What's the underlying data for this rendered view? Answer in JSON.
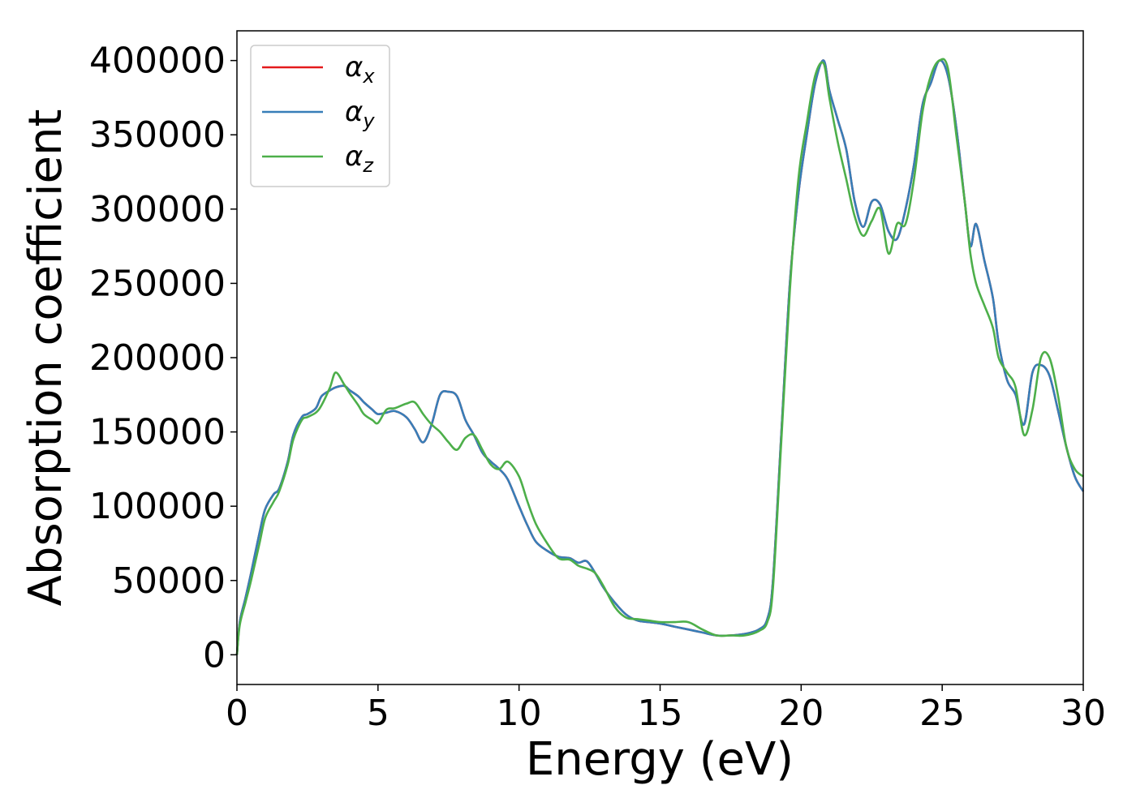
{
  "chart_data": {
    "type": "line",
    "xlabel": "Energy (eV)",
    "ylabel": "Absorption coefficient",
    "xlim": [
      0,
      30
    ],
    "ylim": [
      -20000,
      420000
    ],
    "xticks": [
      0,
      5,
      10,
      15,
      20,
      25,
      30
    ],
    "xtick_labels": [
      "0",
      "5",
      "10",
      "15",
      "20",
      "25",
      "30"
    ],
    "yticks": [
      0,
      50000,
      100000,
      150000,
      200000,
      250000,
      300000,
      350000,
      400000
    ],
    "ytick_labels": [
      "0",
      "50000",
      "100000",
      "150000",
      "200000",
      "250000",
      "300000",
      "350000",
      "400000"
    ],
    "grid": false,
    "legend_position": "top-left",
    "legend": [
      {
        "base": "α",
        "sub": "x",
        "color": "#e41a1c"
      },
      {
        "base": "α",
        "sub": "y",
        "color": "#377eb8"
      },
      {
        "base": "α",
        "sub": "z",
        "color": "#4daf4a"
      }
    ],
    "series": [
      {
        "name": "αx",
        "color": "#e41a1c",
        "x": [
          0,
          0.1,
          0.3,
          0.5,
          0.8,
          1.0,
          1.3,
          1.5,
          1.8,
          2.0,
          2.3,
          2.5,
          2.8,
          3.0,
          3.3,
          3.5,
          3.8,
          4.0,
          4.3,
          4.5,
          4.8,
          5.0,
          5.3,
          5.6,
          6.0,
          6.3,
          6.6,
          6.9,
          7.2,
          7.5,
          7.8,
          8.1,
          8.4,
          8.7,
          9.0,
          9.3,
          9.6,
          10.0,
          10.3,
          10.6,
          11.0,
          11.4,
          11.8,
          12.1,
          12.4,
          12.7,
          13.0,
          13.4,
          13.8,
          14.2,
          14.6,
          15.0,
          15.5,
          16.0,
          16.5,
          17.0,
          17.5,
          18.0,
          18.5,
          18.8,
          19.0,
          19.3,
          19.6,
          19.9,
          20.2,
          20.5,
          20.8,
          21.0,
          21.3,
          21.6,
          21.9,
          22.2,
          22.5,
          22.8,
          23.1,
          23.4,
          23.7,
          24.0,
          24.3,
          24.6,
          24.9,
          25.2,
          25.5,
          25.8,
          26.0,
          26.2,
          26.5,
          26.8,
          27.0,
          27.3,
          27.6,
          27.9,
          28.2,
          28.5,
          28.8,
          29.1,
          29.4,
          29.7,
          30.0
        ],
        "values": [
          0,
          22000,
          38000,
          55000,
          82000,
          98000,
          108000,
          112000,
          130000,
          148000,
          160000,
          162000,
          166000,
          174000,
          178000,
          180000,
          181000,
          178000,
          174000,
          170000,
          165000,
          162000,
          163000,
          164000,
          160000,
          152000,
          143000,
          155000,
          175000,
          177000,
          174000,
          158000,
          148000,
          136000,
          130000,
          125000,
          118000,
          100000,
          87000,
          76000,
          70000,
          66000,
          65000,
          62000,
          63000,
          55000,
          45000,
          35000,
          27000,
          23000,
          22000,
          21000,
          19000,
          17000,
          15000,
          13000,
          13000,
          14000,
          17000,
          24000,
          50000,
          150000,
          250000,
          310000,
          350000,
          385000,
          400000,
          380000,
          360000,
          340000,
          305000,
          288000,
          305000,
          303000,
          285000,
          280000,
          300000,
          330000,
          370000,
          385000,
          400000,
          390000,
          355000,
          305000,
          275000,
          290000,
          265000,
          240000,
          210000,
          185000,
          175000,
          155000,
          190000,
          195000,
          188000,
          165000,
          140000,
          120000,
          110000
        ]
      },
      {
        "name": "αy",
        "color": "#377eb8",
        "x": [
          0,
          0.1,
          0.3,
          0.5,
          0.8,
          1.0,
          1.3,
          1.5,
          1.8,
          2.0,
          2.3,
          2.5,
          2.8,
          3.0,
          3.3,
          3.5,
          3.8,
          4.0,
          4.3,
          4.5,
          4.8,
          5.0,
          5.3,
          5.6,
          6.0,
          6.3,
          6.6,
          6.9,
          7.2,
          7.5,
          7.8,
          8.1,
          8.4,
          8.7,
          9.0,
          9.3,
          9.6,
          10.0,
          10.3,
          10.6,
          11.0,
          11.4,
          11.8,
          12.1,
          12.4,
          12.7,
          13.0,
          13.4,
          13.8,
          14.2,
          14.6,
          15.0,
          15.5,
          16.0,
          16.5,
          17.0,
          17.5,
          18.0,
          18.5,
          18.8,
          19.0,
          19.3,
          19.6,
          19.9,
          20.2,
          20.5,
          20.8,
          21.0,
          21.3,
          21.6,
          21.9,
          22.2,
          22.5,
          22.8,
          23.1,
          23.4,
          23.7,
          24.0,
          24.3,
          24.6,
          24.9,
          25.2,
          25.5,
          25.8,
          26.0,
          26.2,
          26.5,
          26.8,
          27.0,
          27.3,
          27.6,
          27.9,
          28.2,
          28.5,
          28.8,
          29.1,
          29.4,
          29.7,
          30.0
        ],
        "values": [
          0,
          22000,
          38000,
          55000,
          82000,
          98000,
          108000,
          112000,
          130000,
          148000,
          160000,
          162000,
          166000,
          174000,
          178000,
          180000,
          181000,
          178000,
          174000,
          170000,
          165000,
          162000,
          163000,
          164000,
          160000,
          152000,
          143000,
          155000,
          175000,
          177000,
          174000,
          158000,
          148000,
          136000,
          130000,
          125000,
          118000,
          100000,
          87000,
          76000,
          70000,
          66000,
          65000,
          62000,
          63000,
          55000,
          45000,
          35000,
          27000,
          23000,
          22000,
          21000,
          19000,
          17000,
          15000,
          13000,
          13000,
          14000,
          17000,
          24000,
          50000,
          150000,
          250000,
          310000,
          350000,
          385000,
          400000,
          380000,
          360000,
          340000,
          305000,
          288000,
          305000,
          303000,
          285000,
          280000,
          300000,
          330000,
          370000,
          385000,
          400000,
          390000,
          355000,
          305000,
          275000,
          290000,
          265000,
          240000,
          210000,
          185000,
          175000,
          155000,
          190000,
          195000,
          188000,
          165000,
          140000,
          120000,
          110000
        ]
      },
      {
        "name": "αz",
        "color": "#4daf4a",
        "x": [
          0,
          0.1,
          0.3,
          0.5,
          0.8,
          1.0,
          1.3,
          1.5,
          1.8,
          2.0,
          2.3,
          2.5,
          2.8,
          3.0,
          3.3,
          3.5,
          3.8,
          4.0,
          4.3,
          4.5,
          4.8,
          5.0,
          5.3,
          5.6,
          6.0,
          6.3,
          6.6,
          6.9,
          7.2,
          7.5,
          7.8,
          8.1,
          8.4,
          8.7,
          9.0,
          9.3,
          9.6,
          10.0,
          10.3,
          10.6,
          11.0,
          11.4,
          11.8,
          12.1,
          12.4,
          12.7,
          13.0,
          13.4,
          13.8,
          14.2,
          14.6,
          15.0,
          15.5,
          16.0,
          16.5,
          17.0,
          17.5,
          18.0,
          18.5,
          18.8,
          19.0,
          19.3,
          19.6,
          19.9,
          20.2,
          20.5,
          20.8,
          21.0,
          21.3,
          21.6,
          21.9,
          22.2,
          22.5,
          22.8,
          23.1,
          23.4,
          23.7,
          24.0,
          24.3,
          24.6,
          24.9,
          25.2,
          25.5,
          25.8,
          26.0,
          26.2,
          26.5,
          26.8,
          27.0,
          27.3,
          27.6,
          27.9,
          28.2,
          28.5,
          28.8,
          29.1,
          29.4,
          29.7,
          30.0
        ],
        "values": [
          0,
          20000,
          35000,
          50000,
          75000,
          92000,
          103000,
          110000,
          128000,
          145000,
          158000,
          160000,
          163000,
          168000,
          180000,
          190000,
          182000,
          176000,
          168000,
          162000,
          158000,
          156000,
          165000,
          166000,
          169000,
          170000,
          162000,
          155000,
          150000,
          143000,
          138000,
          146000,
          148000,
          138000,
          128000,
          125000,
          130000,
          120000,
          103000,
          88000,
          75000,
          65000,
          64000,
          60000,
          58000,
          55000,
          46000,
          32000,
          25000,
          24000,
          23000,
          22000,
          22000,
          22000,
          17000,
          13000,
          13000,
          13000,
          16000,
          22000,
          45000,
          145000,
          245000,
          320000,
          358000,
          390000,
          398000,
          375000,
          345000,
          320000,
          295000,
          282000,
          292000,
          300000,
          270000,
          290000,
          290000,
          320000,
          365000,
          390000,
          400000,
          395000,
          350000,
          305000,
          270000,
          250000,
          235000,
          220000,
          200000,
          190000,
          180000,
          148000,
          165000,
          200000,
          200000,
          175000,
          140000,
          125000,
          120000
        ]
      }
    ]
  }
}
